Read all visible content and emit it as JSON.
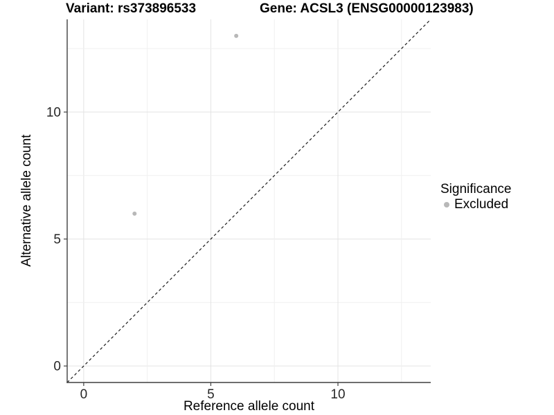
{
  "chart_data": {
    "type": "scatter",
    "title": "Variant: rs373896533    Gene: ACSL3 (ENSG00000123983)",
    "title_left": "Variant: rs373896533",
    "title_right": "Gene: ACSL3 (ENSG00000123983)",
    "xlabel": "Reference allele count",
    "ylabel": "Alternative allele count",
    "xlim": [
      -0.65,
      13.65
    ],
    "ylim": [
      -0.65,
      13.65
    ],
    "x_ticks": [
      0,
      5,
      10
    ],
    "y_ticks": [
      0,
      5,
      10
    ],
    "grid": true,
    "grid_step": 2.5,
    "grid_max": 12.5,
    "series": [
      {
        "name": "Excluded",
        "marker": "circle",
        "color": "#b8b8b8",
        "points": [
          [
            2,
            6
          ],
          [
            6,
            13
          ]
        ]
      }
    ],
    "reference_line": {
      "type": "identity y = x",
      "style": "dashed",
      "color": "#1a1a1a"
    },
    "legend": {
      "title": "Significance",
      "position": "right",
      "entries": [
        {
          "label": "Excluded",
          "color": "#b8b8b8"
        }
      ]
    },
    "colors": {
      "background": "#ffffff",
      "grid_major": "#e3e3e3",
      "grid_minor": "#f0f0f0",
      "axis_line": "#3f3f3f",
      "tick_mark": "#3f3f3f",
      "tick_text": "#262626",
      "point": "#b8b8b8"
    }
  }
}
